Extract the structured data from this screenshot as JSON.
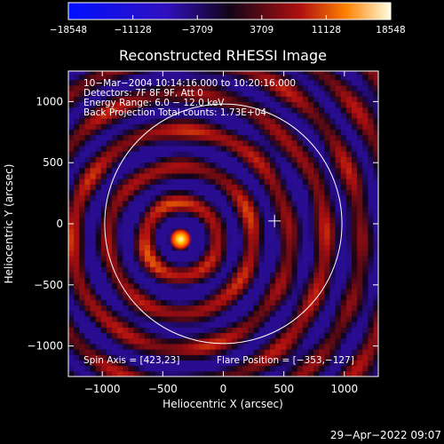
{
  "chart_data": {
    "type": "heatmap",
    "title": "Reconstructed RHESSI Image",
    "xlabel": "Heliocentric X (arcsec)",
    "ylabel": "Heliocentric Y (arcsec)",
    "xlim": [
      -1280,
      1280
    ],
    "ylim": [
      -1250,
      1250
    ],
    "xticks": [
      -1000,
      -500,
      0,
      500,
      1000
    ],
    "xtick_labels": [
      "−1000",
      "−500",
      "0",
      "500",
      "1000"
    ],
    "yticks": [
      -1000,
      -500,
      0,
      500,
      1000
    ],
    "ytick_labels": [
      "−1000",
      "−500",
      "0",
      "500",
      "1000"
    ],
    "colorbar": {
      "ticks": [
        -18548,
        -11128,
        -3709,
        3709,
        11128,
        18548
      ],
      "tick_labels": [
        "−18548",
        "−11128",
        "−3709",
        "3709",
        "11128",
        "18548"
      ],
      "range": [
        -18548,
        18548
      ]
    },
    "annotations": {
      "time_range": "10−Mar−2004 10:14:16.000 to 10:20:16.000",
      "detectors": "Detectors: 7F 8F 9F, Att 0",
      "energy_range": "Energy Range: 6.0 − 12.0 keV",
      "method": "Back Projection   Total counts: 1.73E+04",
      "spin_axis": "Spin Axis = [423,23]",
      "flare_position": "Flare Position = [−353,−127]"
    },
    "source": {
      "x": -353,
      "y": -127
    },
    "spin_axis": {
      "x": 423,
      "y": 23
    },
    "solar_limb_radius": 980,
    "grid": false
  },
  "footer": {
    "date": "29−Apr−2022 09:07"
  }
}
